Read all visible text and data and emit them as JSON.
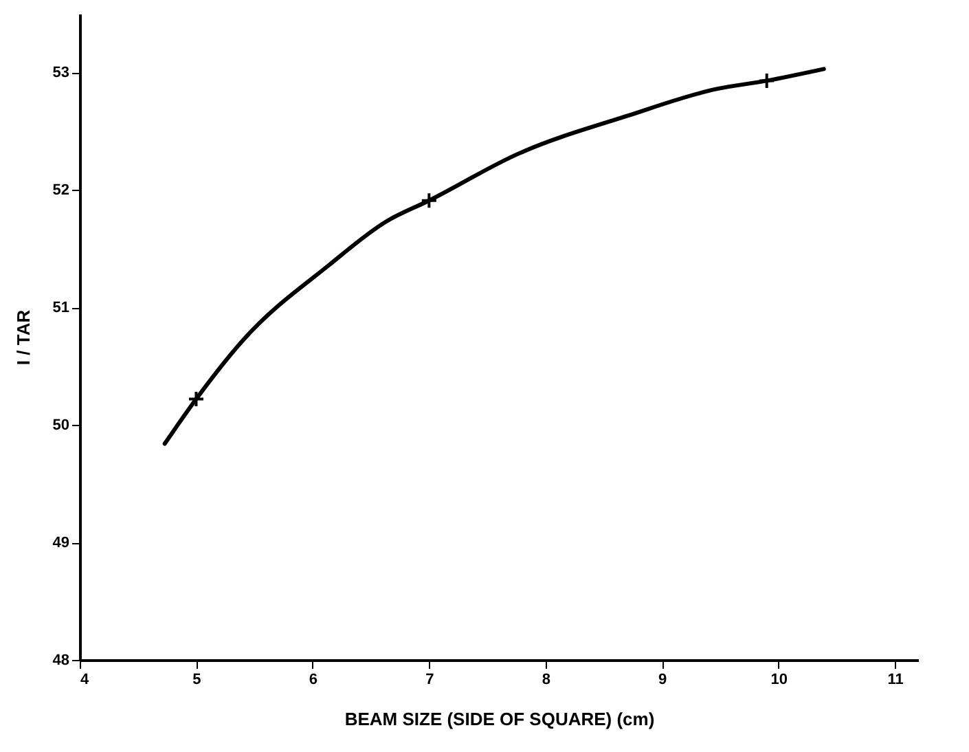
{
  "chart_data": {
    "type": "line",
    "xlabel": "BEAM SIZE  (SIDE OF SQUARE) (cm)",
    "ylabel": "I / TAR",
    "xlim": [
      4,
      11.2
    ],
    "xticks": [
      4,
      5,
      6,
      7,
      8,
      9,
      10,
      11
    ],
    "ylim": [
      48,
      53.5
    ],
    "yticks": [
      48,
      49,
      50,
      51,
      52,
      53
    ],
    "grid": false,
    "series": [
      {
        "color": "#000000",
        "marker": "none",
        "x": [
          4.73,
          5,
          5.41,
          6.14,
          6.63,
          7,
          7.77,
          8.7,
          9.47,
          9.9,
          10.39
        ],
        "values": [
          49.84,
          50.22,
          50.73,
          51.36,
          51.73,
          51.91,
          52.31,
          52.63,
          52.86,
          52.93,
          53.03
        ]
      },
      {
        "type": "scatter",
        "color": "#000000",
        "marker": "cross",
        "x": [
          5,
          7,
          9.9
        ],
        "values": [
          50.22,
          51.91,
          52.93
        ]
      }
    ]
  }
}
